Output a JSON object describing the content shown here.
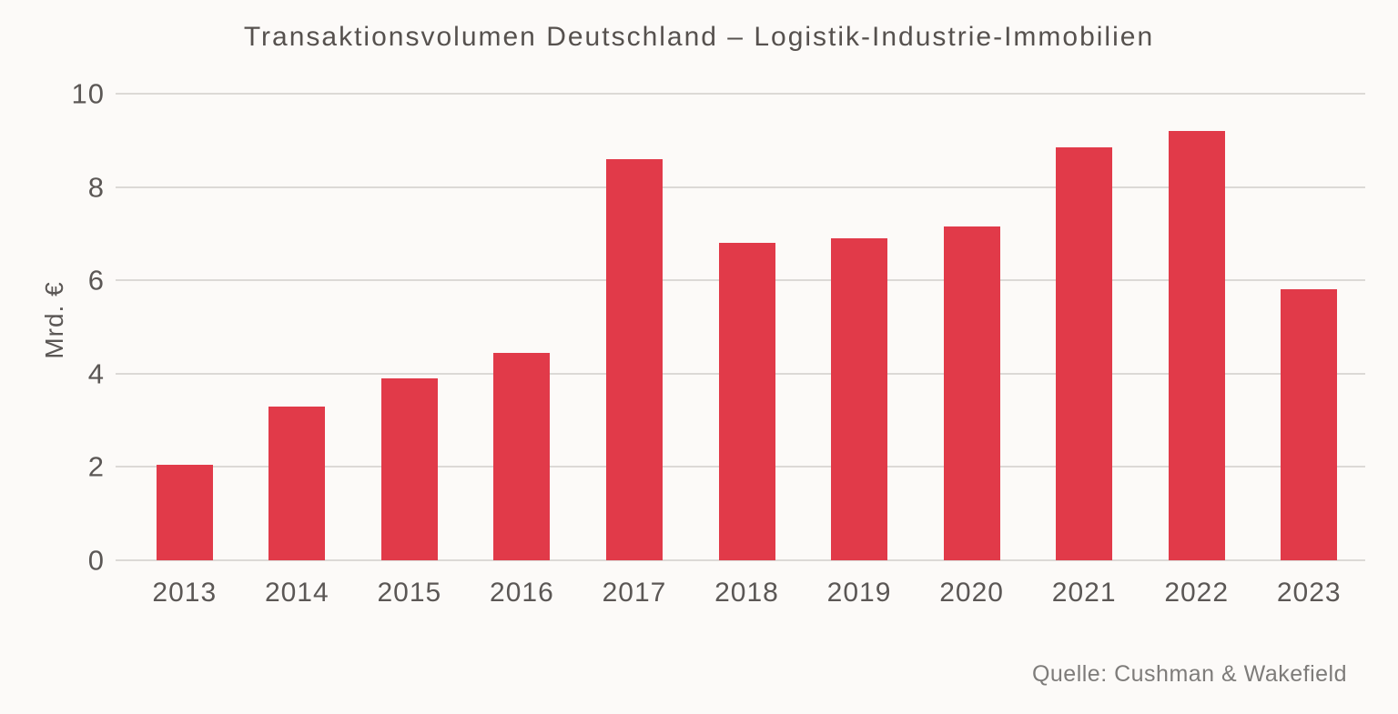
{
  "chart_data": {
    "type": "bar",
    "title": "Transaktionsvolumen Deutschland – Logistik-Industrie-Immobilien",
    "ylabel": "Mrd. €",
    "xlabel": "",
    "source": "Quelle: Cushman & Wakefield",
    "categories": [
      "2013",
      "2014",
      "2015",
      "2016",
      "2017",
      "2018",
      "2019",
      "2020",
      "2021",
      "2022",
      "2023"
    ],
    "values": [
      2.05,
      3.3,
      3.9,
      4.45,
      8.6,
      6.8,
      6.9,
      7.15,
      8.85,
      9.2,
      5.8
    ],
    "ylim": [
      0,
      10
    ],
    "yticks": [
      0,
      2,
      4,
      6,
      8,
      10
    ],
    "grid": "horizontal",
    "legend": "none",
    "bar_color": "#e13a49"
  },
  "colors": {
    "background": "#fcfaf8",
    "bar": "#e13a49",
    "gridline": "#dcd9d6",
    "title_text": "#56514e",
    "axis_text": "#5b5755",
    "source_text": "#7e7c7a"
  }
}
